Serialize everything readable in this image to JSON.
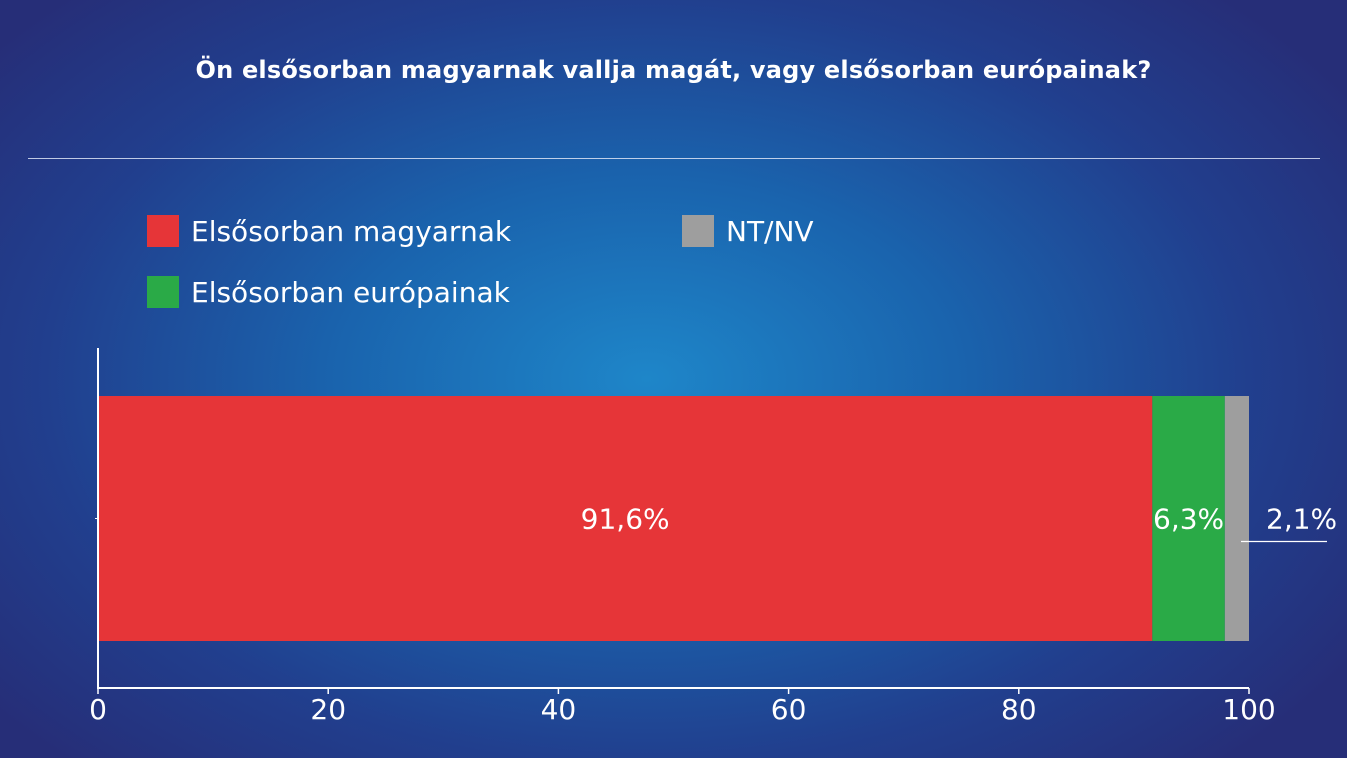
{
  "title": "Ön elsősorban magyarnak vallja magát, vagy elsősorban európainak?",
  "legend": [
    {
      "label": "Elsősorban magyarnak",
      "color": "#e63538"
    },
    {
      "label": "Elsősorban európainak",
      "color": "#2aaa47"
    },
    {
      "label": "NT/NV",
      "color": "#9e9e9e"
    }
  ],
  "chart_data": {
    "type": "bar",
    "orientation": "horizontal",
    "stacked": true,
    "xlim": [
      0,
      100
    ],
    "xticks": [
      "0",
      "20",
      "40",
      "60",
      "80",
      "100"
    ],
    "series": [
      {
        "name": "Elsősorban magyarnak",
        "value": 91.6,
        "label": "91,6%",
        "color": "#e63538"
      },
      {
        "name": "Elsősorban európainak",
        "value": 6.3,
        "label": "6,3%",
        "color": "#2aaa47"
      },
      {
        "name": "NT/NV",
        "value": 2.1,
        "label": "2,1%",
        "color": "#9e9e9e"
      }
    ],
    "grid": false
  }
}
